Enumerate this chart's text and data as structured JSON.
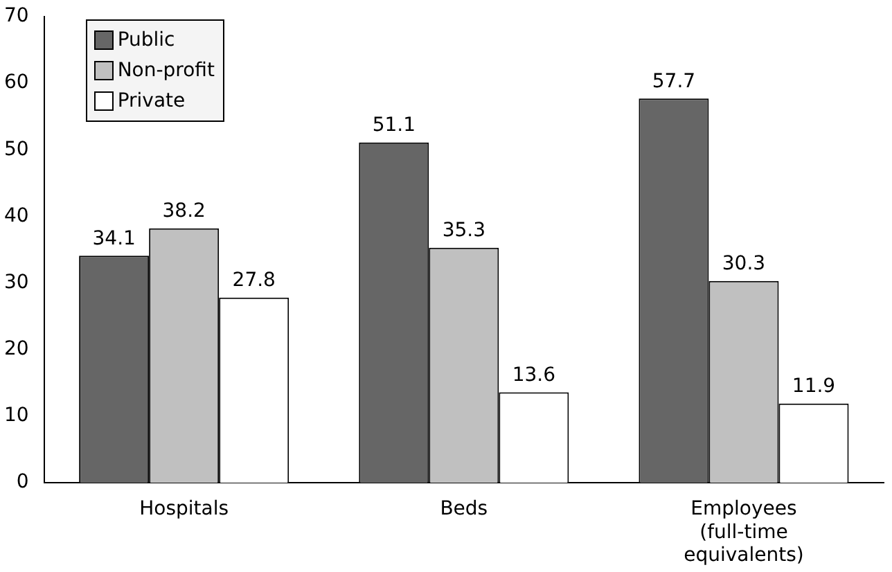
{
  "chart_data": {
    "type": "bar",
    "categories": [
      "Hospitals",
      "Beds",
      "Employees (full-time equivalents)"
    ],
    "series": [
      {
        "name": "Public",
        "color": "#666666",
        "values": [
          34.1,
          51.1,
          57.7
        ]
      },
      {
        "name": "Non-profit",
        "color": "#c0c0c0",
        "values": [
          38.2,
          35.3,
          30.3
        ]
      },
      {
        "name": "Private",
        "color": "#ffffff",
        "values": [
          27.8,
          13.6,
          11.9
        ]
      }
    ],
    "ylim": [
      0,
      70
    ],
    "yticks": [
      0,
      10,
      20,
      30,
      40,
      50,
      60,
      70
    ],
    "grid": false,
    "legend": "top left",
    "data_labels": true
  }
}
